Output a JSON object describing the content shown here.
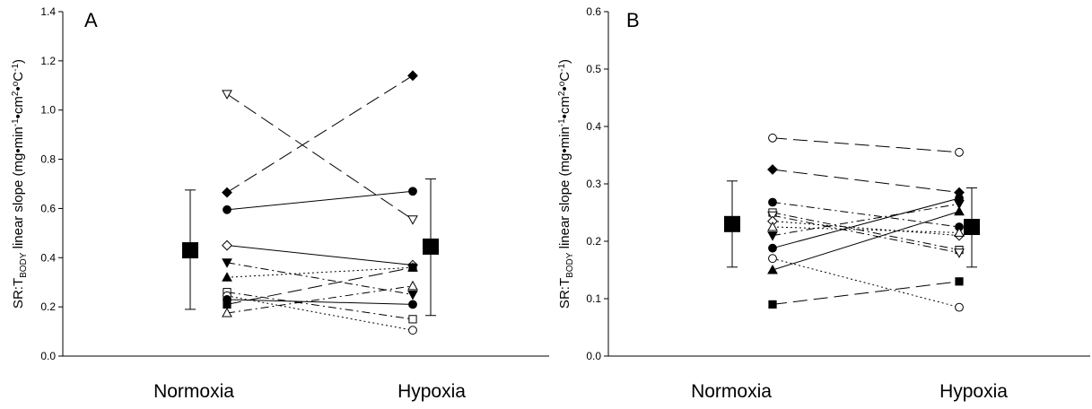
{
  "chart_data": [
    {
      "type": "scatter",
      "panel_label": "A",
      "ylabel": "SR:TBODY linear slope (mg•min-1•cm2•oC-1)",
      "ylabel_parts": {
        "pre": "SR:T",
        "sub": "BODY",
        "mid": " linear slope (mg•min",
        "sup1": "-1",
        "mid2": "•cm",
        "sup2": "2",
        "mid3": "•",
        "sup3": "o",
        "mid4": "C",
        "sup4": "-1",
        "end": ")"
      },
      "categories": [
        "Normoxia",
        "Hypoxia"
      ],
      "ylim": [
        0,
        1.4
      ],
      "yticks": [
        "0.0",
        "0.2",
        "0.4",
        "0.6",
        "0.8",
        "1.0",
        "1.2",
        "1.4"
      ],
      "yticks_values": [
        0,
        0.2,
        0.4,
        0.6,
        0.8,
        1.0,
        1.2,
        1.4
      ],
      "grid": false,
      "group_means": [
        {
          "category": "Normoxia",
          "mean": 0.43,
          "lower": 0.19,
          "upper": 0.675
        },
        {
          "category": "Hypoxia",
          "mean": 0.445,
          "lower": 0.165,
          "upper": 0.72
        }
      ],
      "subjects": [
        {
          "marker": "triangle-down-open",
          "line": "long-dash",
          "normoxia": 1.065,
          "hypoxia": 0.555
        },
        {
          "marker": "diamond-filled",
          "line": "long-dash",
          "normoxia": 0.665,
          "hypoxia": 1.14
        },
        {
          "marker": "circle-filled",
          "line": "solid",
          "normoxia": 0.595,
          "hypoxia": 0.67
        },
        {
          "marker": "diamond-open",
          "line": "solid",
          "normoxia": 0.45,
          "hypoxia": 0.37
        },
        {
          "marker": "triangle-down-filled",
          "line": "dash-dot",
          "normoxia": 0.38,
          "hypoxia": 0.25
        },
        {
          "marker": "triangle-up-filled",
          "line": "dotted",
          "normoxia": 0.32,
          "hypoxia": 0.36
        },
        {
          "marker": "square-open",
          "line": "dash-dot",
          "normoxia": 0.26,
          "hypoxia": 0.15
        },
        {
          "marker": "circle-open",
          "line": "dotted",
          "normoxia": 0.245,
          "hypoxia": 0.105
        },
        {
          "marker": "square-filled",
          "line": "long-dash",
          "normoxia": 0.21,
          "hypoxia": 0.36
        },
        {
          "marker": "circle-filled",
          "line": "solid",
          "normoxia": 0.23,
          "hypoxia": 0.21
        },
        {
          "marker": "triangle-up-open",
          "line": "dash-dot",
          "normoxia": 0.175,
          "hypoxia": 0.285
        }
      ]
    },
    {
      "type": "scatter",
      "panel_label": "B",
      "ylabel": "SR:TBODY linear slope (mg•min-1•cm2•oC-1)",
      "ylabel_parts": {
        "pre": "SR:T",
        "sub": "BODY",
        "mid": " linear slope (mg•min",
        "sup1": "-1",
        "mid2": "•cm",
        "sup2": "2",
        "mid3": "•",
        "sup3": "o",
        "mid4": "C",
        "sup4": "-1",
        "end": ")"
      },
      "categories": [
        "Normoxia",
        "Hypoxia"
      ],
      "ylim": [
        0,
        0.6
      ],
      "yticks": [
        "0.0",
        "0.1",
        "0.2",
        "0.3",
        "0.4",
        "0.5",
        "0.6"
      ],
      "yticks_values": [
        0,
        0.1,
        0.2,
        0.3,
        0.4,
        0.5,
        0.6
      ],
      "grid": false,
      "group_means": [
        {
          "category": "Normoxia",
          "mean": 0.23,
          "lower": 0.155,
          "upper": 0.305
        },
        {
          "category": "Hypoxia",
          "mean": 0.225,
          "lower": 0.155,
          "upper": 0.293
        }
      ],
      "subjects": [
        {
          "marker": "circle-open",
          "line": "long-dash",
          "normoxia": 0.38,
          "hypoxia": 0.355
        },
        {
          "marker": "diamond-filled",
          "line": "long-dash",
          "normoxia": 0.325,
          "hypoxia": 0.285
        },
        {
          "marker": "circle-filled",
          "line": "dash-dot",
          "normoxia": 0.268,
          "hypoxia": 0.225
        },
        {
          "marker": "square-open",
          "line": "dash-dot",
          "normoxia": 0.25,
          "hypoxia": 0.185
        },
        {
          "marker": "triangle-down-open",
          "line": "dash-dot",
          "normoxia": 0.245,
          "hypoxia": 0.18
        },
        {
          "marker": "diamond-open",
          "line": "dotted",
          "normoxia": 0.235,
          "hypoxia": 0.21
        },
        {
          "marker": "triangle-up-open",
          "line": "dotted",
          "normoxia": 0.225,
          "hypoxia": 0.215
        },
        {
          "marker": "triangle-down-filled",
          "line": "dash-dot",
          "normoxia": 0.21,
          "hypoxia": 0.265
        },
        {
          "marker": "circle-filled",
          "line": "solid",
          "normoxia": 0.188,
          "hypoxia": 0.275
        },
        {
          "marker": "circle-open",
          "line": "dotted",
          "normoxia": 0.17,
          "hypoxia": 0.085
        },
        {
          "marker": "triangle-up-filled",
          "line": "solid",
          "normoxia": 0.15,
          "hypoxia": 0.252
        },
        {
          "marker": "square-filled",
          "line": "long-dash",
          "normoxia": 0.09,
          "hypoxia": 0.13
        }
      ]
    }
  ]
}
